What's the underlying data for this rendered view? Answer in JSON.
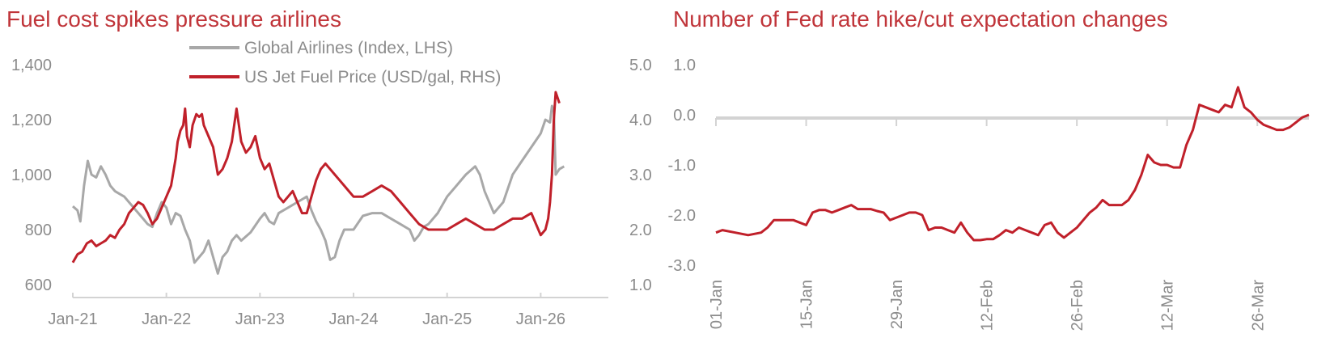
{
  "colors": {
    "title": "#c0353a",
    "red": "#c0202a",
    "grey": "#a8a8a8",
    "axis": "#d3d3d3",
    "text": "#8c8c8c"
  },
  "chart_data": [
    {
      "type": "line",
      "title": "Fuel cost spikes pressure airlines",
      "x_ticks": [
        "Jan-21",
        "Jan-22",
        "Jan-23",
        "Jan-24",
        "Jan-25",
        "Jan-26"
      ],
      "x_range": [
        2021.0,
        2026.55
      ],
      "y_left_ticks": [
        "1,400",
        "1,200",
        "1,000",
        "800",
        "600"
      ],
      "y_left_range": [
        600,
        1400
      ],
      "y_right_ticks": [
        "5.0",
        "4.0",
        "3.0",
        "2.0",
        "1.0"
      ],
      "y_right_range": [
        1.0,
        5.0
      ],
      "legend_position": "top-center",
      "series": [
        {
          "name": "Global Airlines (Index, LHS)",
          "axis": "left",
          "color": "#a8a8a8",
          "x": [
            2021.0,
            2021.05,
            2021.08,
            2021.12,
            2021.16,
            2021.2,
            2021.25,
            2021.3,
            2021.35,
            2021.4,
            2021.45,
            2021.5,
            2021.55,
            2021.6,
            2021.65,
            2021.7,
            2021.75,
            2021.8,
            2021.85,
            2021.9,
            2021.95,
            2022.0,
            2022.05,
            2022.1,
            2022.15,
            2022.2,
            2022.25,
            2022.3,
            2022.35,
            2022.4,
            2022.45,
            2022.5,
            2022.55,
            2022.6,
            2022.65,
            2022.7,
            2022.75,
            2022.8,
            2022.9,
            2023.0,
            2023.05,
            2023.1,
            2023.15,
            2023.2,
            2023.3,
            2023.4,
            2023.5,
            2023.55,
            2023.6,
            2023.65,
            2023.7,
            2023.75,
            2023.8,
            2023.85,
            2023.9,
            2024.0,
            2024.1,
            2024.2,
            2024.3,
            2024.4,
            2024.5,
            2024.6,
            2024.65,
            2024.7,
            2024.75,
            2024.8,
            2024.9,
            2025.0,
            2025.1,
            2025.2,
            2025.3,
            2025.35,
            2025.4,
            2025.5,
            2025.6,
            2025.7,
            2025.8,
            2025.9,
            2026.0,
            2026.05,
            2026.1,
            2026.12,
            2026.14,
            2026.16,
            2026.2,
            2026.25
          ],
          "y": [
            885,
            870,
            830,
            960,
            1050,
            1000,
            990,
            1030,
            1000,
            960,
            940,
            930,
            920,
            900,
            880,
            860,
            840,
            820,
            810,
            860,
            900,
            880,
            820,
            860,
            850,
            800,
            760,
            680,
            700,
            720,
            760,
            700,
            640,
            700,
            720,
            760,
            780,
            760,
            790,
            840,
            860,
            830,
            820,
            860,
            880,
            900,
            920,
            870,
            830,
            800,
            760,
            690,
            700,
            760,
            800,
            800,
            850,
            860,
            860,
            840,
            820,
            800,
            760,
            780,
            810,
            820,
            860,
            920,
            960,
            1000,
            1030,
            1000,
            940,
            860,
            900,
            1000,
            1050,
            1100,
            1150,
            1200,
            1190,
            1250,
            1230,
            1000,
            1020,
            1030
          ]
        },
        {
          "name": "US Jet Fuel Price (USD/gal, RHS)",
          "axis": "right",
          "color": "#c0202a",
          "x": [
            2021.0,
            2021.05,
            2021.1,
            2021.15,
            2021.2,
            2021.25,
            2021.3,
            2021.35,
            2021.4,
            2021.45,
            2021.5,
            2021.55,
            2021.6,
            2021.65,
            2021.7,
            2021.75,
            2021.8,
            2021.85,
            2021.9,
            2021.95,
            2022.0,
            2022.05,
            2022.1,
            2022.12,
            2022.15,
            2022.18,
            2022.2,
            2022.22,
            2022.25,
            2022.28,
            2022.3,
            2022.32,
            2022.35,
            2022.38,
            2022.4,
            2022.45,
            2022.5,
            2022.55,
            2022.6,
            2022.65,
            2022.7,
            2022.75,
            2022.8,
            2022.85,
            2022.9,
            2022.95,
            2023.0,
            2023.05,
            2023.1,
            2023.15,
            2023.2,
            2023.25,
            2023.3,
            2023.35,
            2023.4,
            2023.45,
            2023.5,
            2023.55,
            2023.6,
            2023.65,
            2023.7,
            2023.75,
            2023.8,
            2023.85,
            2023.9,
            2023.95,
            2024.0,
            2024.1,
            2024.2,
            2024.3,
            2024.4,
            2024.5,
            2024.6,
            2024.7,
            2024.8,
            2024.9,
            2025.0,
            2025.1,
            2025.2,
            2025.3,
            2025.4,
            2025.5,
            2025.6,
            2025.7,
            2025.8,
            2025.9,
            2026.0,
            2026.05,
            2026.08,
            2026.1,
            2026.12,
            2026.14,
            2026.16,
            2026.18,
            2026.2
          ],
          "y": [
            1.4,
            1.55,
            1.6,
            1.75,
            1.8,
            1.7,
            1.75,
            1.8,
            1.9,
            1.85,
            2.0,
            2.1,
            2.3,
            2.4,
            2.5,
            2.45,
            2.3,
            2.1,
            2.2,
            2.4,
            2.6,
            2.8,
            3.3,
            3.6,
            3.8,
            3.9,
            4.2,
            3.7,
            3.5,
            3.9,
            4.0,
            4.1,
            4.05,
            4.1,
            3.9,
            3.7,
            3.5,
            3.0,
            3.1,
            3.3,
            3.6,
            4.2,
            3.6,
            3.4,
            3.5,
            3.7,
            3.3,
            3.1,
            3.2,
            2.9,
            2.6,
            2.5,
            2.6,
            2.7,
            2.5,
            2.3,
            2.3,
            2.6,
            2.9,
            3.1,
            3.2,
            3.1,
            3.0,
            2.9,
            2.8,
            2.7,
            2.6,
            2.6,
            2.7,
            2.8,
            2.7,
            2.5,
            2.3,
            2.1,
            2.0,
            2.0,
            2.0,
            2.1,
            2.2,
            2.1,
            2.0,
            2.0,
            2.1,
            2.2,
            2.2,
            2.3,
            1.9,
            2.0,
            2.2,
            2.5,
            3.0,
            4.0,
            4.5,
            4.4,
            4.3
          ]
        }
      ]
    },
    {
      "type": "line",
      "title": "Number of Fed rate hike/cut expectation changes",
      "x_ticks": [
        "01-Jan",
        "15-Jan",
        "29-Jan",
        "12-Feb",
        "26-Feb",
        "12-Mar",
        "26-Mar"
      ],
      "x_range": [
        0,
        92
      ],
      "y_ticks": [
        "1.0",
        "0.0",
        "-1.0",
        "-2.0",
        "-3.0"
      ],
      "y_range": [
        -3.0,
        1.0
      ],
      "series": [
        {
          "color": "#c0202a",
          "x": [
            0,
            1,
            3,
            5,
            7,
            8,
            9,
            10,
            11,
            12,
            13,
            14,
            15,
            16,
            17,
            18,
            19,
            20,
            21,
            22,
            23,
            24,
            25,
            26,
            27,
            28,
            29,
            30,
            31,
            32,
            33,
            34,
            35,
            36,
            37,
            38,
            39,
            40,
            41,
            42,
            43,
            44,
            45,
            46,
            47,
            48,
            49,
            50,
            51,
            52,
            53,
            54,
            55,
            56,
            57,
            58,
            59,
            60,
            61,
            62,
            63,
            64,
            65,
            66,
            67,
            68,
            69,
            70,
            71,
            72,
            73,
            74,
            75,
            76,
            77,
            78,
            79,
            80,
            81,
            82,
            83,
            84,
            85,
            86,
            87,
            88,
            89,
            90,
            91,
            92
          ],
          "y": [
            -2.35,
            -2.3,
            -2.35,
            -2.4,
            -2.35,
            -2.25,
            -2.1,
            -2.1,
            -2.1,
            -2.1,
            -2.15,
            -2.2,
            -1.95,
            -1.9,
            -1.9,
            -1.95,
            -1.9,
            -1.85,
            -1.8,
            -1.88,
            -1.88,
            -1.88,
            -1.92,
            -1.95,
            -2.1,
            -2.05,
            -2.0,
            -1.95,
            -1.95,
            -2.0,
            -2.3,
            -2.25,
            -2.25,
            -2.3,
            -2.35,
            -2.15,
            -2.35,
            -2.5,
            -2.5,
            -2.48,
            -2.48,
            -2.4,
            -2.3,
            -2.35,
            -2.25,
            -2.3,
            -2.35,
            -2.4,
            -2.2,
            -2.15,
            -2.35,
            -2.45,
            -2.35,
            -2.25,
            -2.1,
            -1.95,
            -1.85,
            -1.7,
            -1.8,
            -1.8,
            -1.8,
            -1.7,
            -1.5,
            -1.2,
            -0.8,
            -0.95,
            -1.0,
            -1.0,
            -1.05,
            -1.05,
            -0.6,
            -0.3,
            0.2,
            0.15,
            0.1,
            0.05,
            0.2,
            0.15,
            0.55,
            0.15,
            0.05,
            -0.1,
            -0.2,
            -0.25,
            -0.3,
            -0.3,
            -0.25,
            -0.15,
            -0.05,
            0.0
          ]
        }
      ]
    }
  ]
}
